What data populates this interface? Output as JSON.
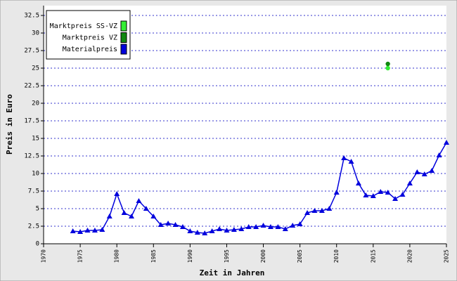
{
  "chart_data": {
    "type": "line",
    "y_label": "Preis in Euro",
    "x_label": "Zeit in Jahren",
    "xlim": [
      1970,
      2025
    ],
    "xticks": [
      1970,
      1975,
      1980,
      1985,
      1990,
      1995,
      2000,
      2005,
      2010,
      2015,
      2020,
      2025
    ],
    "ylim": [
      0,
      32.5
    ],
    "yticks": [
      0,
      2.5,
      5,
      7.5,
      10,
      12.5,
      15,
      17.5,
      20,
      22.5,
      25,
      27.5,
      30,
      32.5
    ],
    "grid": true,
    "legend": "top-left",
    "series": [
      {
        "name": "Marktpreis SS-VZ",
        "color": "#33ee33",
        "marker": "circle",
        "line": false,
        "x": [
          2017
        ],
        "values": [
          25.0
        ]
      },
      {
        "name": "Marktpreis VZ",
        "color": "#118811",
        "marker": "circle",
        "line": false,
        "x": [
          2017
        ],
        "values": [
          25.6
        ]
      },
      {
        "name": "Materialpreis",
        "color": "#0000dd",
        "marker": "triangle",
        "line": true,
        "x": [
          1974,
          1975,
          1976,
          1977,
          1978,
          1979,
          1980,
          1981,
          1982,
          1983,
          1984,
          1985,
          1986,
          1987,
          1988,
          1989,
          1990,
          1991,
          1992,
          1993,
          1994,
          1995,
          1996,
          1997,
          1998,
          1999,
          2000,
          2001,
          2002,
          2003,
          2004,
          2005,
          2006,
          2007,
          2008,
          2009,
          2010,
          2011,
          2012,
          2013,
          2014,
          2015,
          2016,
          2017,
          2018,
          2019,
          2020,
          2021,
          2022,
          2023,
          2024,
          2025
        ],
        "values": [
          1.8,
          1.7,
          1.9,
          1.9,
          2.0,
          3.9,
          7.1,
          4.4,
          3.9,
          6.1,
          5.0,
          3.9,
          2.7,
          2.9,
          2.7,
          2.4,
          1.8,
          1.6,
          1.5,
          1.8,
          2.1,
          1.9,
          2.0,
          2.1,
          2.4,
          2.4,
          2.6,
          2.4,
          2.4,
          2.1,
          2.6,
          2.8,
          4.4,
          4.7,
          4.7,
          5.0,
          7.3,
          12.2,
          11.7,
          8.6,
          6.9,
          6.8,
          7.4,
          7.3,
          6.4,
          7.0,
          8.6,
          10.2,
          9.9,
          10.4,
          12.6,
          14.4
        ]
      }
    ]
  }
}
